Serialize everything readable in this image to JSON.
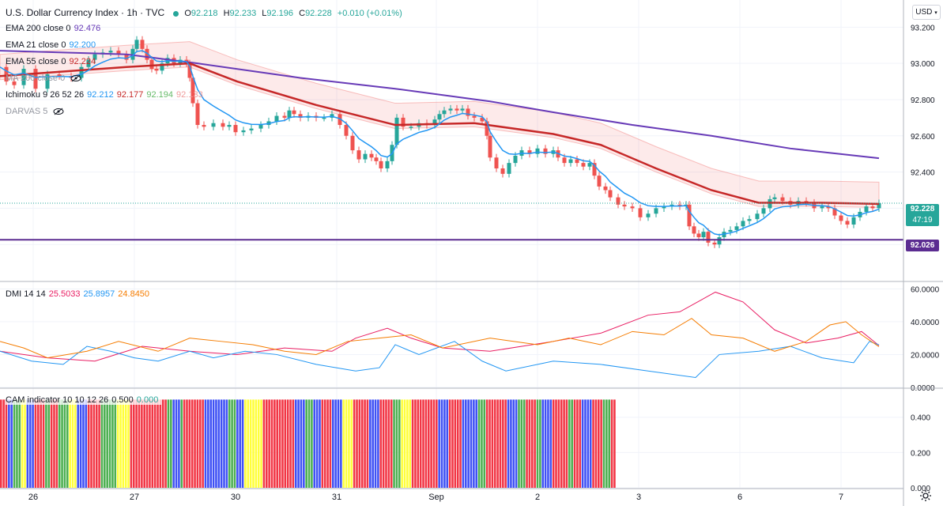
{
  "header": {
    "symbol": "U.S. Dollar Currency Index · 1h · TVC",
    "o_label": "O",
    "o": "92.218",
    "h_label": "H",
    "h": "92.233",
    "l_label": "L",
    "l": "92.196",
    "c_label": "C",
    "c": "92.228",
    "change": "+0.010 (+0.01%)"
  },
  "indicators": {
    "ema200": {
      "label": "EMA 200 close 0",
      "value": "92.476",
      "color": "#673ab7"
    },
    "ema21": {
      "label": "EMA 21 close 0",
      "value": "92.200",
      "color": "#2196f3"
    },
    "ema55": {
      "label": "EMA 55 close 0",
      "value": "92.224",
      "color": "#c62828"
    },
    "ma200": {
      "label": "MA 200 close 0"
    },
    "ichimoku": {
      "label": "Ichimoku 9 26 52 26",
      "v1": "92.212",
      "v2": "92.177",
      "v3": "92.194",
      "v4": "92.133",
      "colors": [
        "#2196f3",
        "#c62828",
        "#66bb6a",
        "#ef9a9a"
      ]
    },
    "darvas": {
      "label": "DARVAS 5"
    }
  },
  "currency": "USD",
  "price_tags": {
    "last": "92.228",
    "countdown": "47:19",
    "level": "92.026"
  },
  "dmi": {
    "label": "DMI 14 14",
    "v1": "25.5033",
    "v2": "25.8957",
    "v3": "24.8450",
    "colors": [
      "#e91e63",
      "#2196f3",
      "#f57c00"
    ]
  },
  "cam": {
    "label": "CAM indicator 10 10 12 26",
    "v1": "0.500",
    "v2": "0.000",
    "colors": [
      "#131722",
      "#26a69a"
    ]
  },
  "colors": {
    "up": "#26a69a",
    "down": "#ef5350",
    "cam_red": "#f23645",
    "cam_blue": "#3f51f5",
    "cam_green": "#4caf50",
    "cam_yellow": "#ffff3b",
    "level_line": "#5b2c91"
  },
  "chart_data": [
    {
      "type": "candlestick",
      "title": "U.S. Dollar Currency Index · 1h · TVC",
      "x_ticks": [
        "26",
        "27",
        "30",
        "31",
        "Sep",
        "2",
        "3",
        "6",
        "7"
      ],
      "y_ticks": [
        "92.000",
        "92.200",
        "92.400",
        "92.600",
        "92.800",
        "93.000",
        "93.200"
      ],
      "ylim": [
        91.8,
        93.35
      ],
      "grid": true,
      "close_path": [
        [
          0,
          92.98
        ],
        [
          8,
          92.9
        ],
        [
          18,
          92.88
        ],
        [
          30,
          92.97
        ],
        [
          45,
          92.86
        ],
        [
          60,
          92.94
        ],
        [
          75,
          92.93
        ],
        [
          90,
          92.92
        ],
        [
          103,
          92.98
        ],
        [
          112,
          93.02
        ],
        [
          120,
          93.05
        ],
        [
          130,
          93.06
        ],
        [
          140,
          93.07
        ],
        [
          150,
          93.05
        ],
        [
          160,
          93.02
        ],
        [
          168,
          93.08
        ],
        [
          173,
          93.13
        ],
        [
          180,
          93.08
        ],
        [
          186,
          93.02
        ],
        [
          192,
          92.97
        ],
        [
          198,
          92.96
        ],
        [
          205,
          93.0
        ],
        [
          212,
          93.03
        ],
        [
          220,
          93.0
        ],
        [
          228,
          93.02
        ],
        [
          236,
          93.0
        ],
        [
          240,
          92.92
        ],
        [
          244,
          92.78
        ],
        [
          250,
          92.66
        ],
        [
          258,
          92.65
        ],
        [
          270,
          92.67
        ],
        [
          282,
          92.65
        ],
        [
          290,
          92.66
        ],
        [
          298,
          92.62
        ],
        [
          308,
          92.63
        ],
        [
          318,
          92.64
        ],
        [
          330,
          92.66
        ],
        [
          340,
          92.68
        ],
        [
          350,
          92.71
        ],
        [
          360,
          92.7
        ],
        [
          366,
          92.74
        ],
        [
          372,
          92.72
        ],
        [
          380,
          92.7
        ],
        [
          390,
          92.71
        ],
        [
          400,
          92.7
        ],
        [
          410,
          92.7
        ],
        [
          420,
          92.72
        ],
        [
          430,
          92.66
        ],
        [
          438,
          92.6
        ],
        [
          446,
          92.52
        ],
        [
          454,
          92.47
        ],
        [
          462,
          92.5
        ],
        [
          470,
          92.48
        ],
        [
          476,
          92.46
        ],
        [
          482,
          92.42
        ],
        [
          490,
          92.46
        ],
        [
          496,
          92.55
        ],
        [
          502,
          92.7
        ],
        [
          510,
          92.65
        ],
        [
          520,
          92.65
        ],
        [
          530,
          92.67
        ],
        [
          540,
          92.66
        ],
        [
          550,
          92.69
        ],
        [
          556,
          92.72
        ],
        [
          562,
          92.74
        ],
        [
          570,
          92.75
        ],
        [
          578,
          92.74
        ],
        [
          585,
          92.75
        ],
        [
          592,
          92.71
        ],
        [
          600,
          92.7
        ],
        [
          610,
          92.68
        ],
        [
          616,
          92.6
        ],
        [
          620,
          92.48
        ],
        [
          628,
          92.42
        ],
        [
          636,
          92.39
        ],
        [
          644,
          92.45
        ],
        [
          652,
          92.49
        ],
        [
          660,
          92.52
        ],
        [
          670,
          92.5
        ],
        [
          680,
          92.53
        ],
        [
          690,
          92.5
        ],
        [
          700,
          92.52
        ],
        [
          706,
          92.48
        ],
        [
          714,
          92.45
        ],
        [
          722,
          92.47
        ],
        [
          730,
          92.45
        ],
        [
          738,
          92.43
        ],
        [
          746,
          92.45
        ],
        [
          752,
          92.38
        ],
        [
          758,
          92.32
        ],
        [
          766,
          92.3
        ],
        [
          772,
          92.26
        ],
        [
          782,
          92.22
        ],
        [
          790,
          92.21
        ],
        [
          800,
          92.2
        ],
        [
          810,
          92.15
        ],
        [
          820,
          92.17
        ],
        [
          830,
          92.2
        ],
        [
          840,
          92.21
        ],
        [
          850,
          92.22
        ],
        [
          860,
          92.21
        ],
        [
          868,
          92.22
        ],
        [
          872,
          92.1
        ],
        [
          878,
          92.06
        ],
        [
          884,
          92.04
        ],
        [
          890,
          92.07
        ],
        [
          896,
          92.01
        ],
        [
          904,
          92.0
        ],
        [
          910,
          92.04
        ],
        [
          916,
          92.07
        ],
        [
          924,
          92.08
        ],
        [
          932,
          92.1
        ],
        [
          940,
          92.13
        ],
        [
          948,
          92.14
        ],
        [
          958,
          92.17
        ],
        [
          966,
          92.2
        ],
        [
          974,
          92.25
        ],
        [
          980,
          92.26
        ],
        [
          990,
          92.24
        ],
        [
          1000,
          92.22
        ],
        [
          1010,
          92.24
        ],
        [
          1020,
          92.23
        ],
        [
          1030,
          92.2
        ],
        [
          1040,
          92.21
        ],
        [
          1048,
          92.2
        ],
        [
          1056,
          92.16
        ],
        [
          1064,
          92.13
        ],
        [
          1072,
          92.11
        ],
        [
          1080,
          92.15
        ],
        [
          1088,
          92.18
        ],
        [
          1096,
          92.21
        ],
        [
          1104,
          92.2
        ],
        [
          1112,
          92.228
        ]
      ],
      "ema200_path": [
        [
          0,
          93.07
        ],
        [
          160,
          93.05
        ],
        [
          250,
          93.0
        ],
        [
          380,
          92.92
        ],
        [
          500,
          92.86
        ],
        [
          620,
          92.79
        ],
        [
          700,
          92.73
        ],
        [
          800,
          92.66
        ],
        [
          900,
          92.6
        ],
        [
          1000,
          92.53
        ],
        [
          1112,
          92.476
        ]
      ],
      "ema55_path": [
        [
          0,
          92.93
        ],
        [
          160,
          92.98
        ],
        [
          240,
          93.0
        ],
        [
          300,
          92.9
        ],
        [
          400,
          92.77
        ],
        [
          500,
          92.66
        ],
        [
          600,
          92.67
        ],
        [
          700,
          92.61
        ],
        [
          760,
          92.55
        ],
        [
          830,
          92.42
        ],
        [
          900,
          92.3
        ],
        [
          960,
          92.23
        ],
        [
          1040,
          92.23
        ],
        [
          1112,
          92.224
        ]
      ],
      "level": 92.026
    },
    {
      "type": "line",
      "title": "DMI 14 14",
      "y_ticks": [
        "0.0000",
        "20.0000",
        "40.0000",
        "60.0000"
      ],
      "ylim": [
        0,
        64
      ],
      "series": [
        {
          "name": "DMI +DI",
          "color": "#e91e63",
          "points": [
            [
              0,
              22
            ],
            [
              60,
              18
            ],
            [
              120,
              16
            ],
            [
              180,
              25
            ],
            [
              240,
              22
            ],
            [
              300,
              20
            ],
            [
              360,
              24
            ],
            [
              420,
              22
            ],
            [
              450,
              30
            ],
            [
              490,
              36
            ],
            [
              520,
              30
            ],
            [
              560,
              24
            ],
            [
              620,
              22
            ],
            [
              700,
              28
            ],
            [
              760,
              33
            ],
            [
              820,
              44
            ],
            [
              860,
              46
            ],
            [
              905,
              58
            ],
            [
              940,
              52
            ],
            [
              980,
              35
            ],
            [
              1020,
              27
            ],
            [
              1060,
              30
            ],
            [
              1090,
              34
            ],
            [
              1112,
              25.5
            ]
          ]
        },
        {
          "name": "DMI -DI",
          "color": "#2196f3",
          "points": [
            [
              0,
              22
            ],
            [
              40,
              16
            ],
            [
              80,
              14
            ],
            [
              110,
              25
            ],
            [
              140,
              22
            ],
            [
              170,
              18
            ],
            [
              200,
              16
            ],
            [
              240,
              22
            ],
            [
              270,
              18
            ],
            [
              310,
              22
            ],
            [
              350,
              20
            ],
            [
              400,
              14
            ],
            [
              450,
              10
            ],
            [
              480,
              12
            ],
            [
              500,
              26
            ],
            [
              530,
              20
            ],
            [
              575,
              28
            ],
            [
              610,
              16
            ],
            [
              640,
              10
            ],
            [
              700,
              16
            ],
            [
              760,
              14
            ],
            [
              820,
              10
            ],
            [
              880,
              6
            ],
            [
              910,
              20
            ],
            [
              960,
              22
            ],
            [
              1000,
              25
            ],
            [
              1040,
              18
            ],
            [
              1080,
              15
            ],
            [
              1100,
              28
            ],
            [
              1112,
              25.9
            ]
          ]
        },
        {
          "name": "DMI ADX",
          "color": "#f57c00",
          "points": [
            [
              0,
              28
            ],
            [
              30,
              24
            ],
            [
              60,
              18
            ],
            [
              110,
              22
            ],
            [
              150,
              28
            ],
            [
              200,
              22
            ],
            [
              240,
              30
            ],
            [
              280,
              28
            ],
            [
              320,
              26
            ],
            [
              360,
              22
            ],
            [
              400,
              20
            ],
            [
              440,
              28
            ],
            [
              480,
              30
            ],
            [
              520,
              32
            ],
            [
              560,
              24
            ],
            [
              620,
              30
            ],
            [
              680,
              26
            ],
            [
              720,
              30
            ],
            [
              760,
              26
            ],
            [
              800,
              34
            ],
            [
              840,
              32
            ],
            [
              875,
              42
            ],
            [
              900,
              32
            ],
            [
              940,
              30
            ],
            [
              980,
              22
            ],
            [
              1020,
              28
            ],
            [
              1050,
              38
            ],
            [
              1070,
              40
            ],
            [
              1090,
              32
            ],
            [
              1112,
              24.8
            ]
          ]
        }
      ]
    },
    {
      "type": "bar",
      "title": "CAM indicator 10 10 12 26",
      "y_ticks": [
        "0.000",
        "0.200",
        "0.400"
      ],
      "ylim": [
        0,
        0.56
      ],
      "value": 0.5,
      "segments": [
        [
          "red",
          3
        ],
        [
          "blue",
          2
        ],
        [
          "green",
          3
        ],
        [
          "yellow",
          2
        ],
        [
          "blue",
          3
        ],
        [
          "red",
          4
        ],
        [
          "green",
          2
        ],
        [
          "red",
          3
        ],
        [
          "green",
          4
        ],
        [
          "yellow",
          3
        ],
        [
          "blue",
          4
        ],
        [
          "red",
          5
        ],
        [
          "green",
          6
        ],
        [
          "yellow",
          5
        ],
        [
          "red",
          14
        ],
        [
          "green",
          2
        ],
        [
          "blue",
          3
        ],
        [
          "green",
          1
        ],
        [
          "red",
          8
        ],
        [
          "blue",
          9
        ],
        [
          "green",
          3
        ],
        [
          "blue",
          3
        ],
        [
          "yellow",
          7
        ],
        [
          "red",
          12
        ],
        [
          "blue",
          4
        ],
        [
          "green",
          3
        ],
        [
          "blue",
          3
        ],
        [
          "red",
          4
        ],
        [
          "blue",
          4
        ],
        [
          "yellow",
          4
        ],
        [
          "red",
          6
        ],
        [
          "blue",
          4
        ],
        [
          "red",
          5
        ],
        [
          "green",
          3
        ],
        [
          "yellow",
          4
        ],
        [
          "red",
          10
        ],
        [
          "blue",
          4
        ],
        [
          "red",
          5
        ],
        [
          "blue",
          6
        ],
        [
          "green",
          3
        ],
        [
          "red",
          8
        ],
        [
          "blue",
          4
        ],
        [
          "green",
          3
        ],
        [
          "red",
          4
        ],
        [
          "green",
          2
        ],
        [
          "blue",
          4
        ],
        [
          "red",
          6
        ],
        [
          "green",
          2
        ],
        [
          "red",
          3
        ],
        [
          "blue",
          4
        ],
        [
          "red",
          4
        ],
        [
          "green",
          3
        ],
        [
          "red",
          2
        ]
      ]
    }
  ]
}
